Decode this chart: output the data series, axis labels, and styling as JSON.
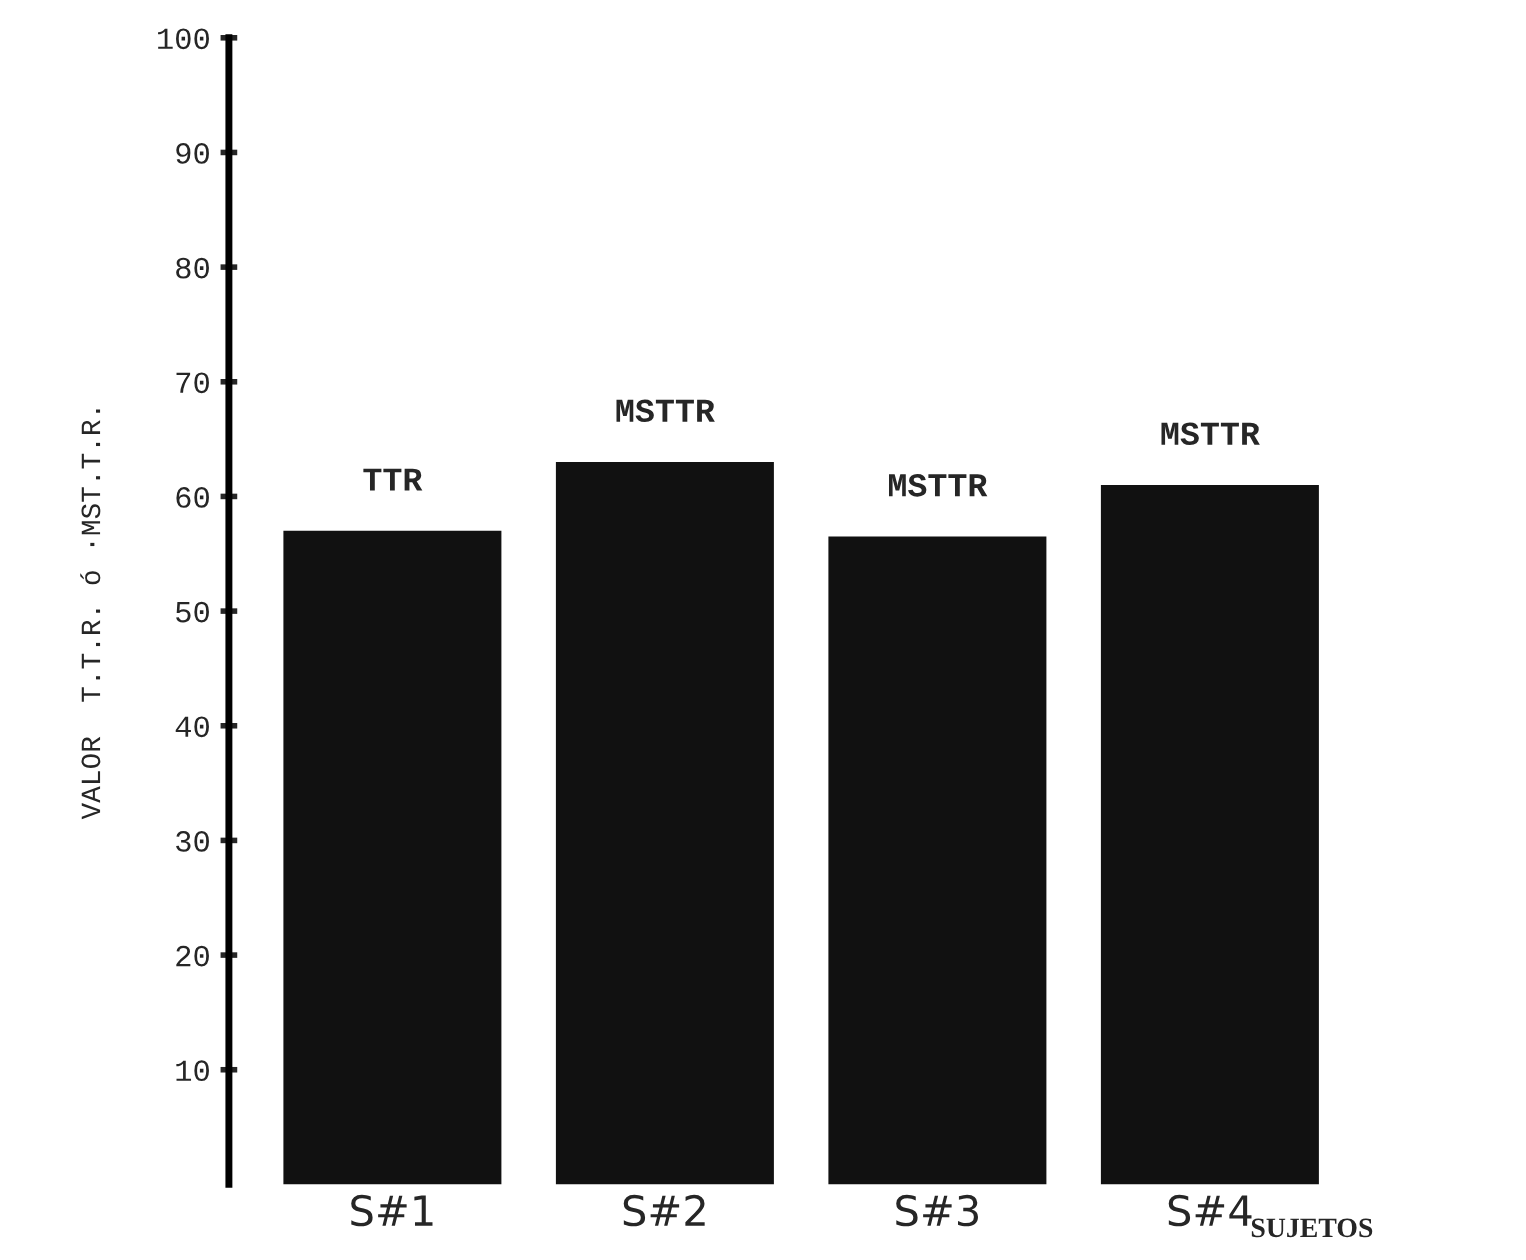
{
  "chart_data": {
    "type": "bar",
    "xlabel": "SUJETOS",
    "ylabel": "VALOR  T.T.R. ó ·MST.T.R.",
    "categories": [
      "S#1",
      "S#2",
      "S#3",
      "S#4"
    ],
    "values": [
      57,
      63,
      56.5,
      61
    ],
    "value_labels": [
      "TTR",
      "MSTTR",
      "MSTTR",
      "MSTTR"
    ],
    "color": "#111111",
    "ylim": [
      0,
      100
    ],
    "yticks": [
      10,
      20,
      30,
      40,
      50,
      60,
      70,
      80,
      90,
      100
    ],
    "grid": false
  }
}
